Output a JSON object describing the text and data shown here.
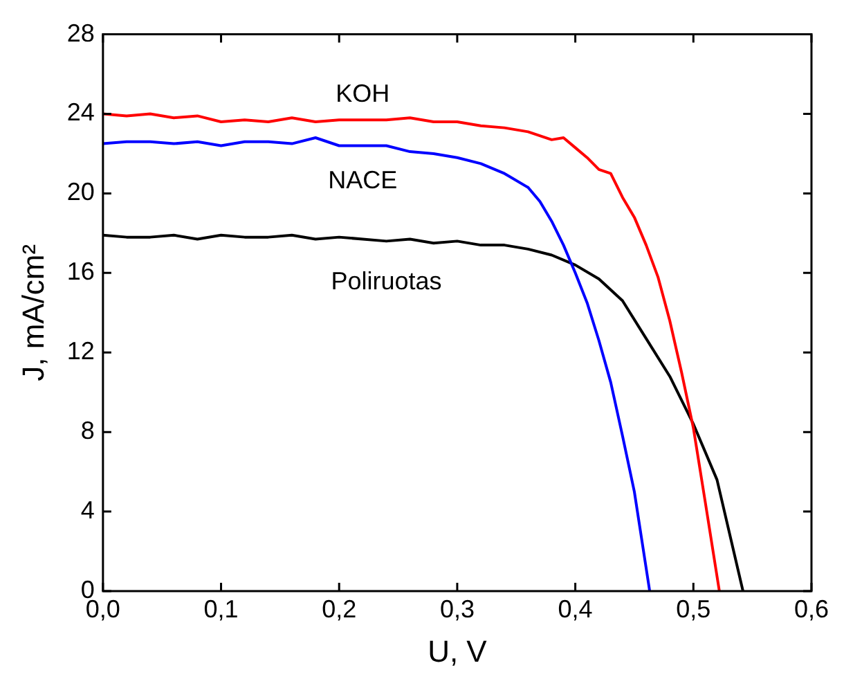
{
  "chart_data": {
    "type": "line",
    "xlabel": "U, V",
    "ylabel": "J, mA/cm²",
    "xlim": [
      0,
      0.6
    ],
    "ylim": [
      0,
      28
    ],
    "xticks": [
      {
        "value": 0,
        "label": "0,0"
      },
      {
        "value": 0.1,
        "label": "0,1"
      },
      {
        "value": 0.2,
        "label": "0,2"
      },
      {
        "value": 0.3,
        "label": "0,3"
      },
      {
        "value": 0.4,
        "label": "0,4"
      },
      {
        "value": 0.5,
        "label": "0,5"
      },
      {
        "value": 0.6,
        "label": "0,6"
      }
    ],
    "yticks": [
      0,
      4,
      8,
      12,
      16,
      20,
      24,
      28
    ],
    "grid": false,
    "legend": false,
    "marker": "none",
    "line_style": "solid",
    "series": [
      {
        "name": "KOH",
        "color": "#ff0000",
        "x": [
          0,
          0.02,
          0.04,
          0.06,
          0.08,
          0.1,
          0.12,
          0.14,
          0.16,
          0.18,
          0.2,
          0.22,
          0.24,
          0.26,
          0.28,
          0.3,
          0.32,
          0.34,
          0.36,
          0.38,
          0.39,
          0.4,
          0.41,
          0.42,
          0.43,
          0.44,
          0.45,
          0.46,
          0.47,
          0.48,
          0.49,
          0.5,
          0.51,
          0.522
        ],
        "values": [
          24.0,
          23.9,
          24.0,
          23.8,
          23.9,
          23.6,
          23.7,
          23.6,
          23.8,
          23.6,
          23.7,
          23.7,
          23.7,
          23.8,
          23.6,
          23.6,
          23.4,
          23.3,
          23.1,
          22.7,
          22.8,
          22.3,
          21.8,
          21.2,
          21.0,
          19.8,
          18.8,
          17.4,
          15.8,
          13.6,
          11.0,
          8.2,
          4.5,
          0
        ]
      },
      {
        "name": "NACE",
        "color": "#0000ff",
        "x": [
          0,
          0.02,
          0.04,
          0.06,
          0.08,
          0.1,
          0.12,
          0.14,
          0.16,
          0.18,
          0.2,
          0.22,
          0.24,
          0.26,
          0.28,
          0.3,
          0.32,
          0.34,
          0.36,
          0.37,
          0.38,
          0.39,
          0.4,
          0.41,
          0.42,
          0.43,
          0.44,
          0.45,
          0.463
        ],
        "values": [
          22.5,
          22.6,
          22.6,
          22.5,
          22.6,
          22.4,
          22.6,
          22.6,
          22.5,
          22.8,
          22.4,
          22.4,
          22.4,
          22.1,
          22.0,
          21.8,
          21.5,
          21.0,
          20.3,
          19.6,
          18.6,
          17.4,
          16.0,
          14.5,
          12.6,
          10.5,
          7.8,
          5.0,
          0
        ]
      },
      {
        "name": "Poliruotas",
        "color": "#000000",
        "x": [
          0,
          0.02,
          0.04,
          0.06,
          0.08,
          0.1,
          0.12,
          0.14,
          0.16,
          0.18,
          0.2,
          0.22,
          0.24,
          0.26,
          0.28,
          0.3,
          0.32,
          0.34,
          0.36,
          0.38,
          0.4,
          0.42,
          0.44,
          0.46,
          0.48,
          0.5,
          0.52,
          0.542
        ],
        "values": [
          17.9,
          17.8,
          17.8,
          17.9,
          17.7,
          17.9,
          17.8,
          17.8,
          17.9,
          17.7,
          17.8,
          17.7,
          17.6,
          17.7,
          17.5,
          17.6,
          17.4,
          17.4,
          17.2,
          16.9,
          16.4,
          15.7,
          14.6,
          12.7,
          10.8,
          8.4,
          5.6,
          0
        ]
      }
    ]
  }
}
